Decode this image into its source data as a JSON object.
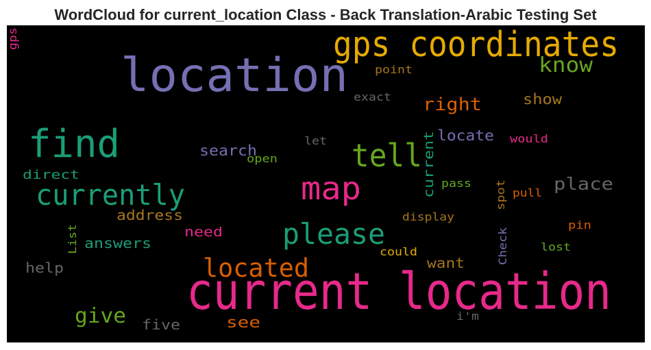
{
  "chart_data": {
    "type": "wordcloud",
    "title": "WordCloud for current_location Class - Back Translation-Arabic Testing Set",
    "background": "#000000",
    "words": [
      {
        "text": "current location",
        "color": "#e7298a"
      },
      {
        "text": "location",
        "color": "#7570b3"
      },
      {
        "text": "gps coordinates",
        "color": "#e6ab02"
      },
      {
        "text": "find",
        "color": "#1b9e77"
      },
      {
        "text": "tell",
        "color": "#66a61e"
      },
      {
        "text": "map",
        "color": "#e7298a"
      },
      {
        "text": "currently",
        "color": "#1b9e77"
      },
      {
        "text": "please",
        "color": "#1b9e77"
      },
      {
        "text": "located",
        "color": "#d95f02"
      },
      {
        "text": "know",
        "color": "#66a61e"
      },
      {
        "text": "right",
        "color": "#d95f02"
      },
      {
        "text": "give",
        "color": "#66a61e"
      },
      {
        "text": "place",
        "color": "#666666"
      },
      {
        "text": "show",
        "color": "#a6761d"
      },
      {
        "text": "search",
        "color": "#7570b3"
      },
      {
        "text": "locate",
        "color": "#7570b3"
      },
      {
        "text": "current",
        "color": "#1b9e77"
      },
      {
        "text": "address",
        "color": "#a6761d"
      },
      {
        "text": "see",
        "color": "#d95f02"
      },
      {
        "text": "want",
        "color": "#a6761d"
      },
      {
        "text": "answers",
        "color": "#1b9e77"
      },
      {
        "text": "help",
        "color": "#666666"
      },
      {
        "text": "need",
        "color": "#e7298a"
      },
      {
        "text": "direct",
        "color": "#1b9e77"
      },
      {
        "text": "five",
        "color": "#666666"
      },
      {
        "text": "point",
        "color": "#a6761d"
      },
      {
        "text": "exact",
        "color": "#666666"
      },
      {
        "text": "would",
        "color": "#e7298a"
      },
      {
        "text": "let",
        "color": "#666666"
      },
      {
        "text": "open",
        "color": "#66a61e"
      },
      {
        "text": "pass",
        "color": "#66a61e"
      },
      {
        "text": "spot",
        "color": "#a6761d"
      },
      {
        "text": "pull",
        "color": "#d95f02"
      },
      {
        "text": "display",
        "color": "#a6761d"
      },
      {
        "text": "pin",
        "color": "#d95f02"
      },
      {
        "text": "Check",
        "color": "#7570b3"
      },
      {
        "text": "lost",
        "color": "#66a61e"
      },
      {
        "text": "could",
        "color": "#e6ab02"
      },
      {
        "text": "List",
        "color": "#66a61e"
      },
      {
        "text": "i'm",
        "color": "#666666"
      },
      {
        "text": "gps",
        "color": "#e7298a"
      }
    ]
  }
}
